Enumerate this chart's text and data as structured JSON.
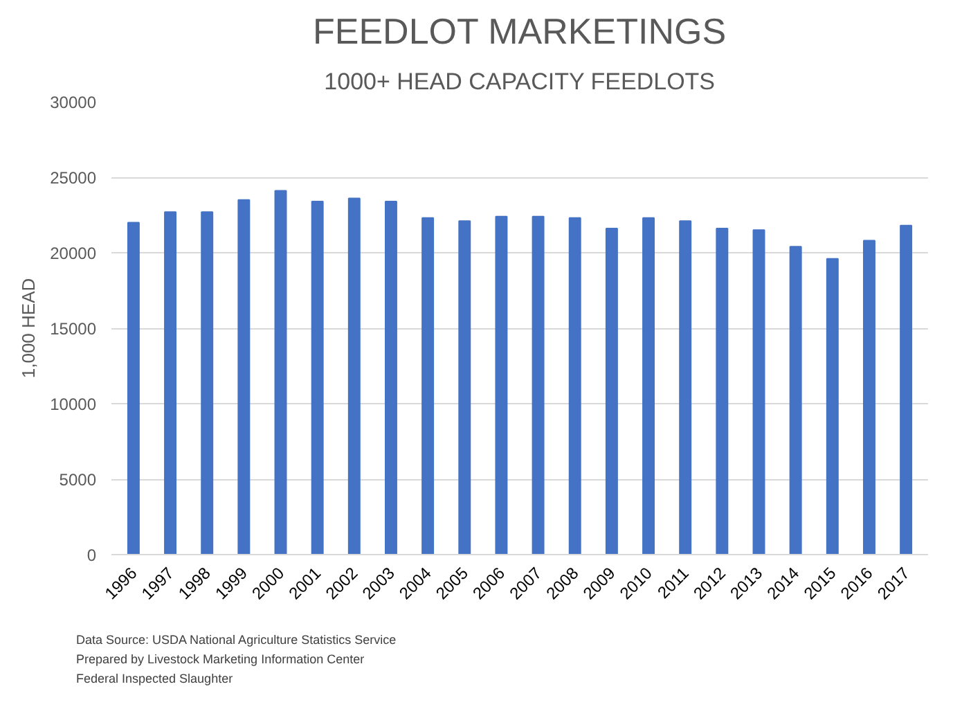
{
  "chart_data": {
    "type": "bar",
    "title": "FEEDLOT MARKETINGS",
    "subtitle": "1000+ HEAD CAPACITY FEEDLOTS",
    "ylabel": "1,000 HEAD",
    "categories": [
      "1996",
      "1997",
      "1998",
      "1999",
      "2000",
      "2001",
      "2002",
      "2003",
      "2004",
      "2005",
      "2006",
      "2007",
      "2008",
      "2009",
      "2010",
      "2011",
      "2012",
      "2013",
      "2014",
      "2015",
      "2016",
      "2017"
    ],
    "values": [
      22000,
      22700,
      22700,
      23500,
      24100,
      23400,
      23600,
      23400,
      22300,
      22100,
      22400,
      22400,
      22300,
      21600,
      22300,
      22100,
      21600,
      21500,
      20400,
      19600,
      20800,
      21800
    ],
    "color": "#4472c4",
    "ylim": [
      0,
      30000
    ],
    "yticks": [
      0,
      5000,
      10000,
      15000,
      20000,
      25000,
      30000
    ],
    "grid": "y",
    "annotations": [
      "Data Source: USDA National Agriculture Statistics Service",
      "Prepared by Livestock Marketing Information Center",
      "Federal Inspected Slaughter"
    ]
  }
}
